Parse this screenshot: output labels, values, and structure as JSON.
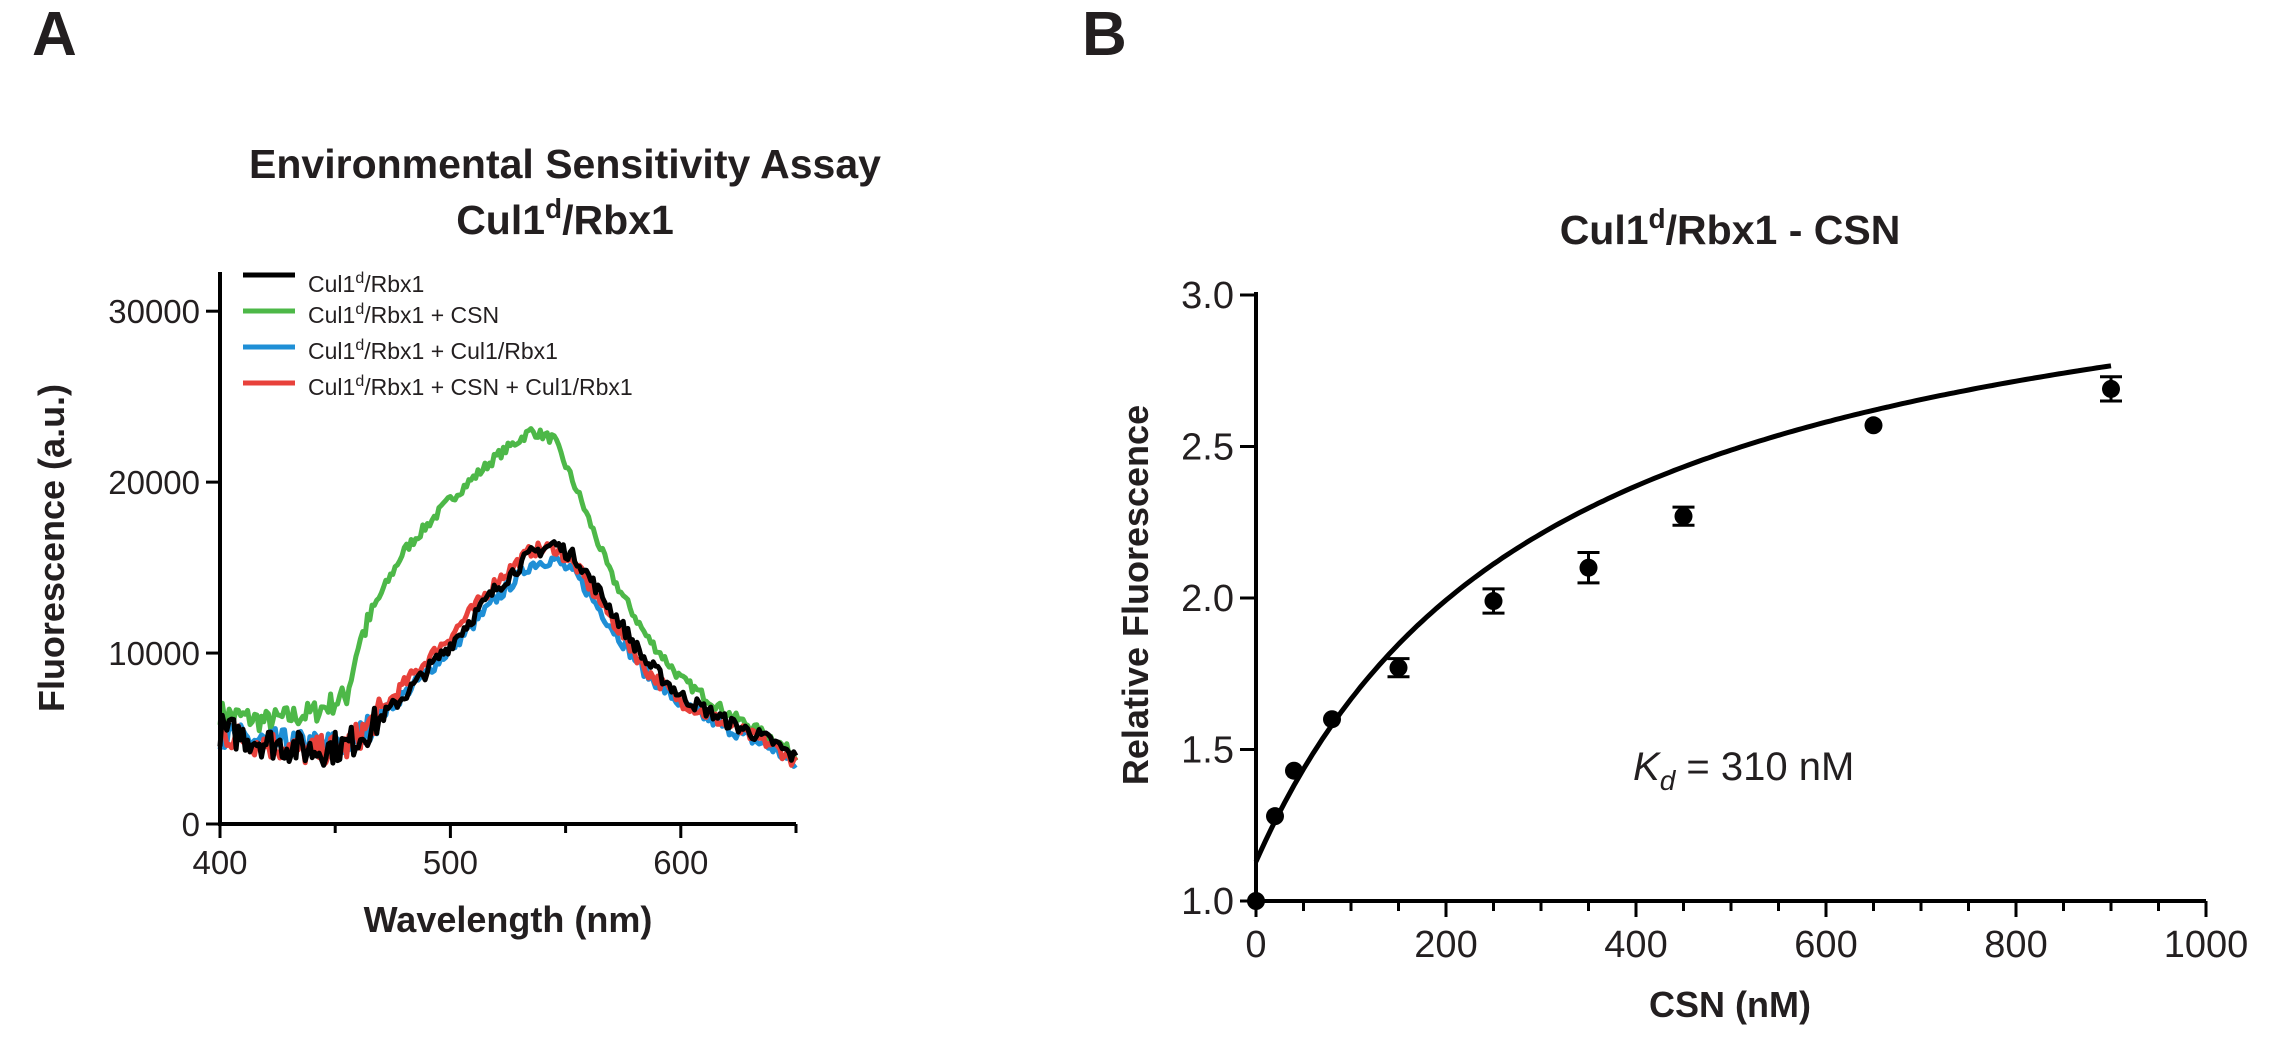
{
  "panels": {
    "a": {
      "label": "A"
    },
    "b": {
      "label": "B"
    }
  },
  "chart_data": [
    {
      "type": "line",
      "title_line1": "Environmental Sensitivity Assay",
      "title_line2": {
        "base": "Cul1",
        "sup": "d",
        "rest": "/Rbx1"
      },
      "xlabel": "Wavelength (nm)",
      "ylabel": "Fluorescence (a.u.)",
      "xlim": [
        400,
        650
      ],
      "ylim": [
        0,
        32000
      ],
      "xticks": [
        400,
        500,
        600
      ],
      "xticks_minor": [
        450,
        550,
        650
      ],
      "yticks": [
        0,
        10000,
        20000,
        30000
      ],
      "ytick_labels": [
        "0",
        "10000",
        "20000",
        "30000"
      ],
      "grid": false,
      "legend_position": "top-left",
      "series": [
        {
          "name": "Cul1d/Rbx1",
          "legend": {
            "base": "Cul1",
            "sup": "d",
            "rest": "/Rbx1"
          },
          "color": "#000000",
          "noise": 700,
          "x": [
            400,
            420,
            440,
            455,
            465,
            480,
            500,
            520,
            535,
            545,
            555,
            570,
            585,
            600,
            620,
            640,
            650
          ],
          "y": [
            5500,
            4800,
            4300,
            4600,
            5600,
            7500,
            10500,
            13800,
            15800,
            16400,
            15500,
            12500,
            9500,
            7500,
            6000,
            4800,
            3800
          ]
        },
        {
          "name": "Cul1d/Rbx1 + CSN",
          "legend": {
            "base": "Cul1",
            "sup": "d",
            "rest": "/Rbx1 + CSN"
          },
          "color": "#4db848",
          "noise": 500,
          "x": [
            400,
            420,
            440,
            455,
            460,
            470,
            480,
            500,
            520,
            535,
            545,
            555,
            570,
            585,
            600,
            620,
            640,
            650
          ],
          "y": [
            6500,
            6000,
            6500,
            7500,
            10500,
            13500,
            16000,
            19000,
            21500,
            23000,
            22500,
            19500,
            14500,
            11000,
            8500,
            6500,
            5000,
            4000
          ]
        },
        {
          "name": "Cul1d/Rbx1 + Cul1/Rbx1",
          "legend": {
            "base": "Cul1",
            "sup": "d",
            "rest": "/Rbx1 + Cul1/Rbx1"
          },
          "color": "#1f8fd6",
          "noise": 600,
          "x": [
            400,
            420,
            440,
            455,
            465,
            480,
            500,
            520,
            535,
            545,
            555,
            570,
            585,
            600,
            620,
            640,
            650
          ],
          "y": [
            5200,
            4800,
            4600,
            4700,
            5700,
            7600,
            10200,
            13200,
            15200,
            15500,
            14500,
            11500,
            8800,
            7000,
            5600,
            4400,
            3400
          ]
        },
        {
          "name": "Cul1d/Rbx1 + CSN + Cul1/Rbx1",
          "legend": {
            "base": "Cul1",
            "sup": "d",
            "rest": "/Rbx1 + CSN + Cul1/Rbx1"
          },
          "color": "#e8413b",
          "noise": 650,
          "x": [
            400,
            420,
            440,
            455,
            465,
            480,
            500,
            520,
            535,
            545,
            555,
            570,
            585,
            600,
            620,
            640,
            650
          ],
          "y": [
            5300,
            4700,
            4200,
            4500,
            5800,
            8200,
            11000,
            14200,
            16000,
            16200,
            15000,
            12000,
            9000,
            7200,
            5800,
            4600,
            3600
          ]
        }
      ]
    },
    {
      "type": "scatter",
      "title": {
        "base": "Cul1",
        "sup": "d",
        "rest": "/Rbx1 - CSN"
      },
      "xlabel": "CSN (nM)",
      "ylabel": "Relative Fluorescence",
      "xlim": [
        0,
        1000
      ],
      "ylim": [
        1.0,
        3.0
      ],
      "xticks": [
        0,
        200,
        400,
        600,
        800,
        1000
      ],
      "ytick_labels": [
        "1.0",
        "1.5",
        "2.0",
        "2.5",
        "3.0"
      ],
      "yticks": [
        1.0,
        1.5,
        2.0,
        2.5,
        3.0
      ],
      "grid": false,
      "points": [
        {
          "x": 0,
          "y": 1.0,
          "err": 0
        },
        {
          "x": 20,
          "y": 1.28,
          "err": 0
        },
        {
          "x": 40,
          "y": 1.43,
          "err": 0
        },
        {
          "x": 80,
          "y": 1.6,
          "err": 0
        },
        {
          "x": 150,
          "y": 1.77,
          "err": 0.03
        },
        {
          "x": 250,
          "y": 1.99,
          "err": 0.04
        },
        {
          "x": 350,
          "y": 2.1,
          "err": 0.05
        },
        {
          "x": 450,
          "y": 2.27,
          "err": 0.03
        },
        {
          "x": 650,
          "y": 2.57,
          "err": 0
        },
        {
          "x": 900,
          "y": 2.69,
          "err": 0.04
        }
      ],
      "fit": {
        "model": "binding",
        "y0": 1.13,
        "bmax": 2.2,
        "kd": 310
      },
      "annotation": {
        "symbol": "K",
        "sub": "d",
        "text": " = 310 nM"
      }
    }
  ]
}
